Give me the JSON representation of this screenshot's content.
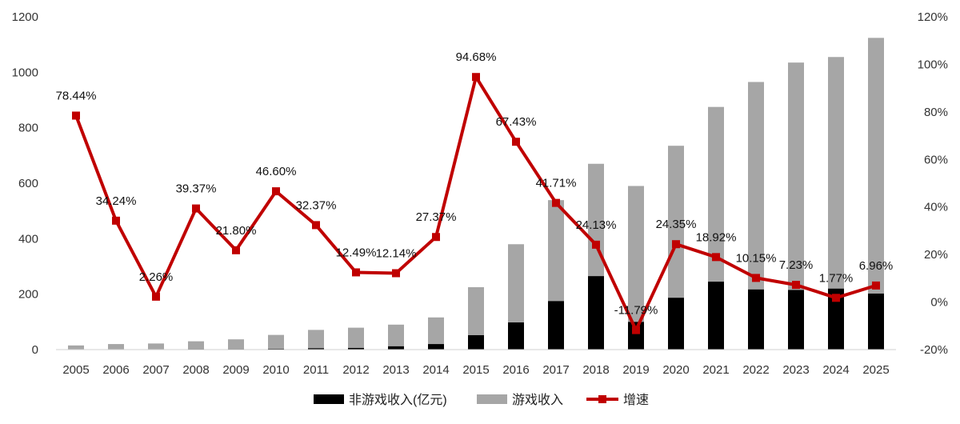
{
  "chart_data": {
    "type": "bar",
    "categories": [
      "2005",
      "2006",
      "2007",
      "2008",
      "2009",
      "2010",
      "2011",
      "2012",
      "2013",
      "2014",
      "2015",
      "2016",
      "2017",
      "2018",
      "2019",
      "2020",
      "2021",
      "2022",
      "2023",
      "2024",
      "2025"
    ],
    "series": [
      {
        "name": "非游戏收入(亿元)",
        "type": "bar-stacked",
        "axis": "left",
        "color": "#000000",
        "values": [
          0,
          0,
          0,
          2,
          2,
          3,
          5,
          6,
          12,
          20,
          52,
          98,
          175,
          265,
          100,
          187,
          245,
          217,
          215,
          220,
          202
        ]
      },
      {
        "name": "游戏收入",
        "type": "bar-stacked",
        "axis": "left",
        "color": "#a6a6a6",
        "values": [
          15,
          20,
          22,
          28,
          35,
          50,
          66,
          73,
          78,
          96,
          173,
          282,
          364,
          405,
          490,
          548,
          630,
          748,
          820,
          835,
          922
        ]
      },
      {
        "name": "增速",
        "type": "line",
        "axis": "right",
        "color": "#c00000",
        "values": [
          78.44,
          34.24,
          2.26,
          39.37,
          21.8,
          46.6,
          32.37,
          12.49,
          12.14,
          27.37,
          94.68,
          67.43,
          41.71,
          24.13,
          -11.79,
          24.35,
          18.92,
          10.15,
          7.23,
          1.77,
          6.96
        ],
        "labels": [
          "78.44%",
          "34.24%",
          "2.26%",
          "39.37%",
          "21.80%",
          "46.60%",
          "32.37%",
          "12.49%",
          "12.14%",
          "27.37%",
          "94.68%",
          "67.43%",
          "41.71%",
          "24.13%",
          "-11.79%",
          "24.35%",
          "18.92%",
          "10.15%",
          "7.23%",
          "1.77%",
          "6.96%"
        ]
      }
    ],
    "y_left": {
      "min": 0,
      "max": 1200,
      "step": 200,
      "ticks": [
        "0",
        "200",
        "400",
        "600",
        "800",
        "1000",
        "1200"
      ]
    },
    "y_right": {
      "min": -20,
      "max": 120,
      "step": 20,
      "ticks": [
        "-20%",
        "0%",
        "20%",
        "40%",
        "60%",
        "80%",
        "100%",
        "120%"
      ]
    },
    "title": "",
    "xlabel": "",
    "ylabel": "",
    "grid": false,
    "legend_position": "bottom"
  }
}
